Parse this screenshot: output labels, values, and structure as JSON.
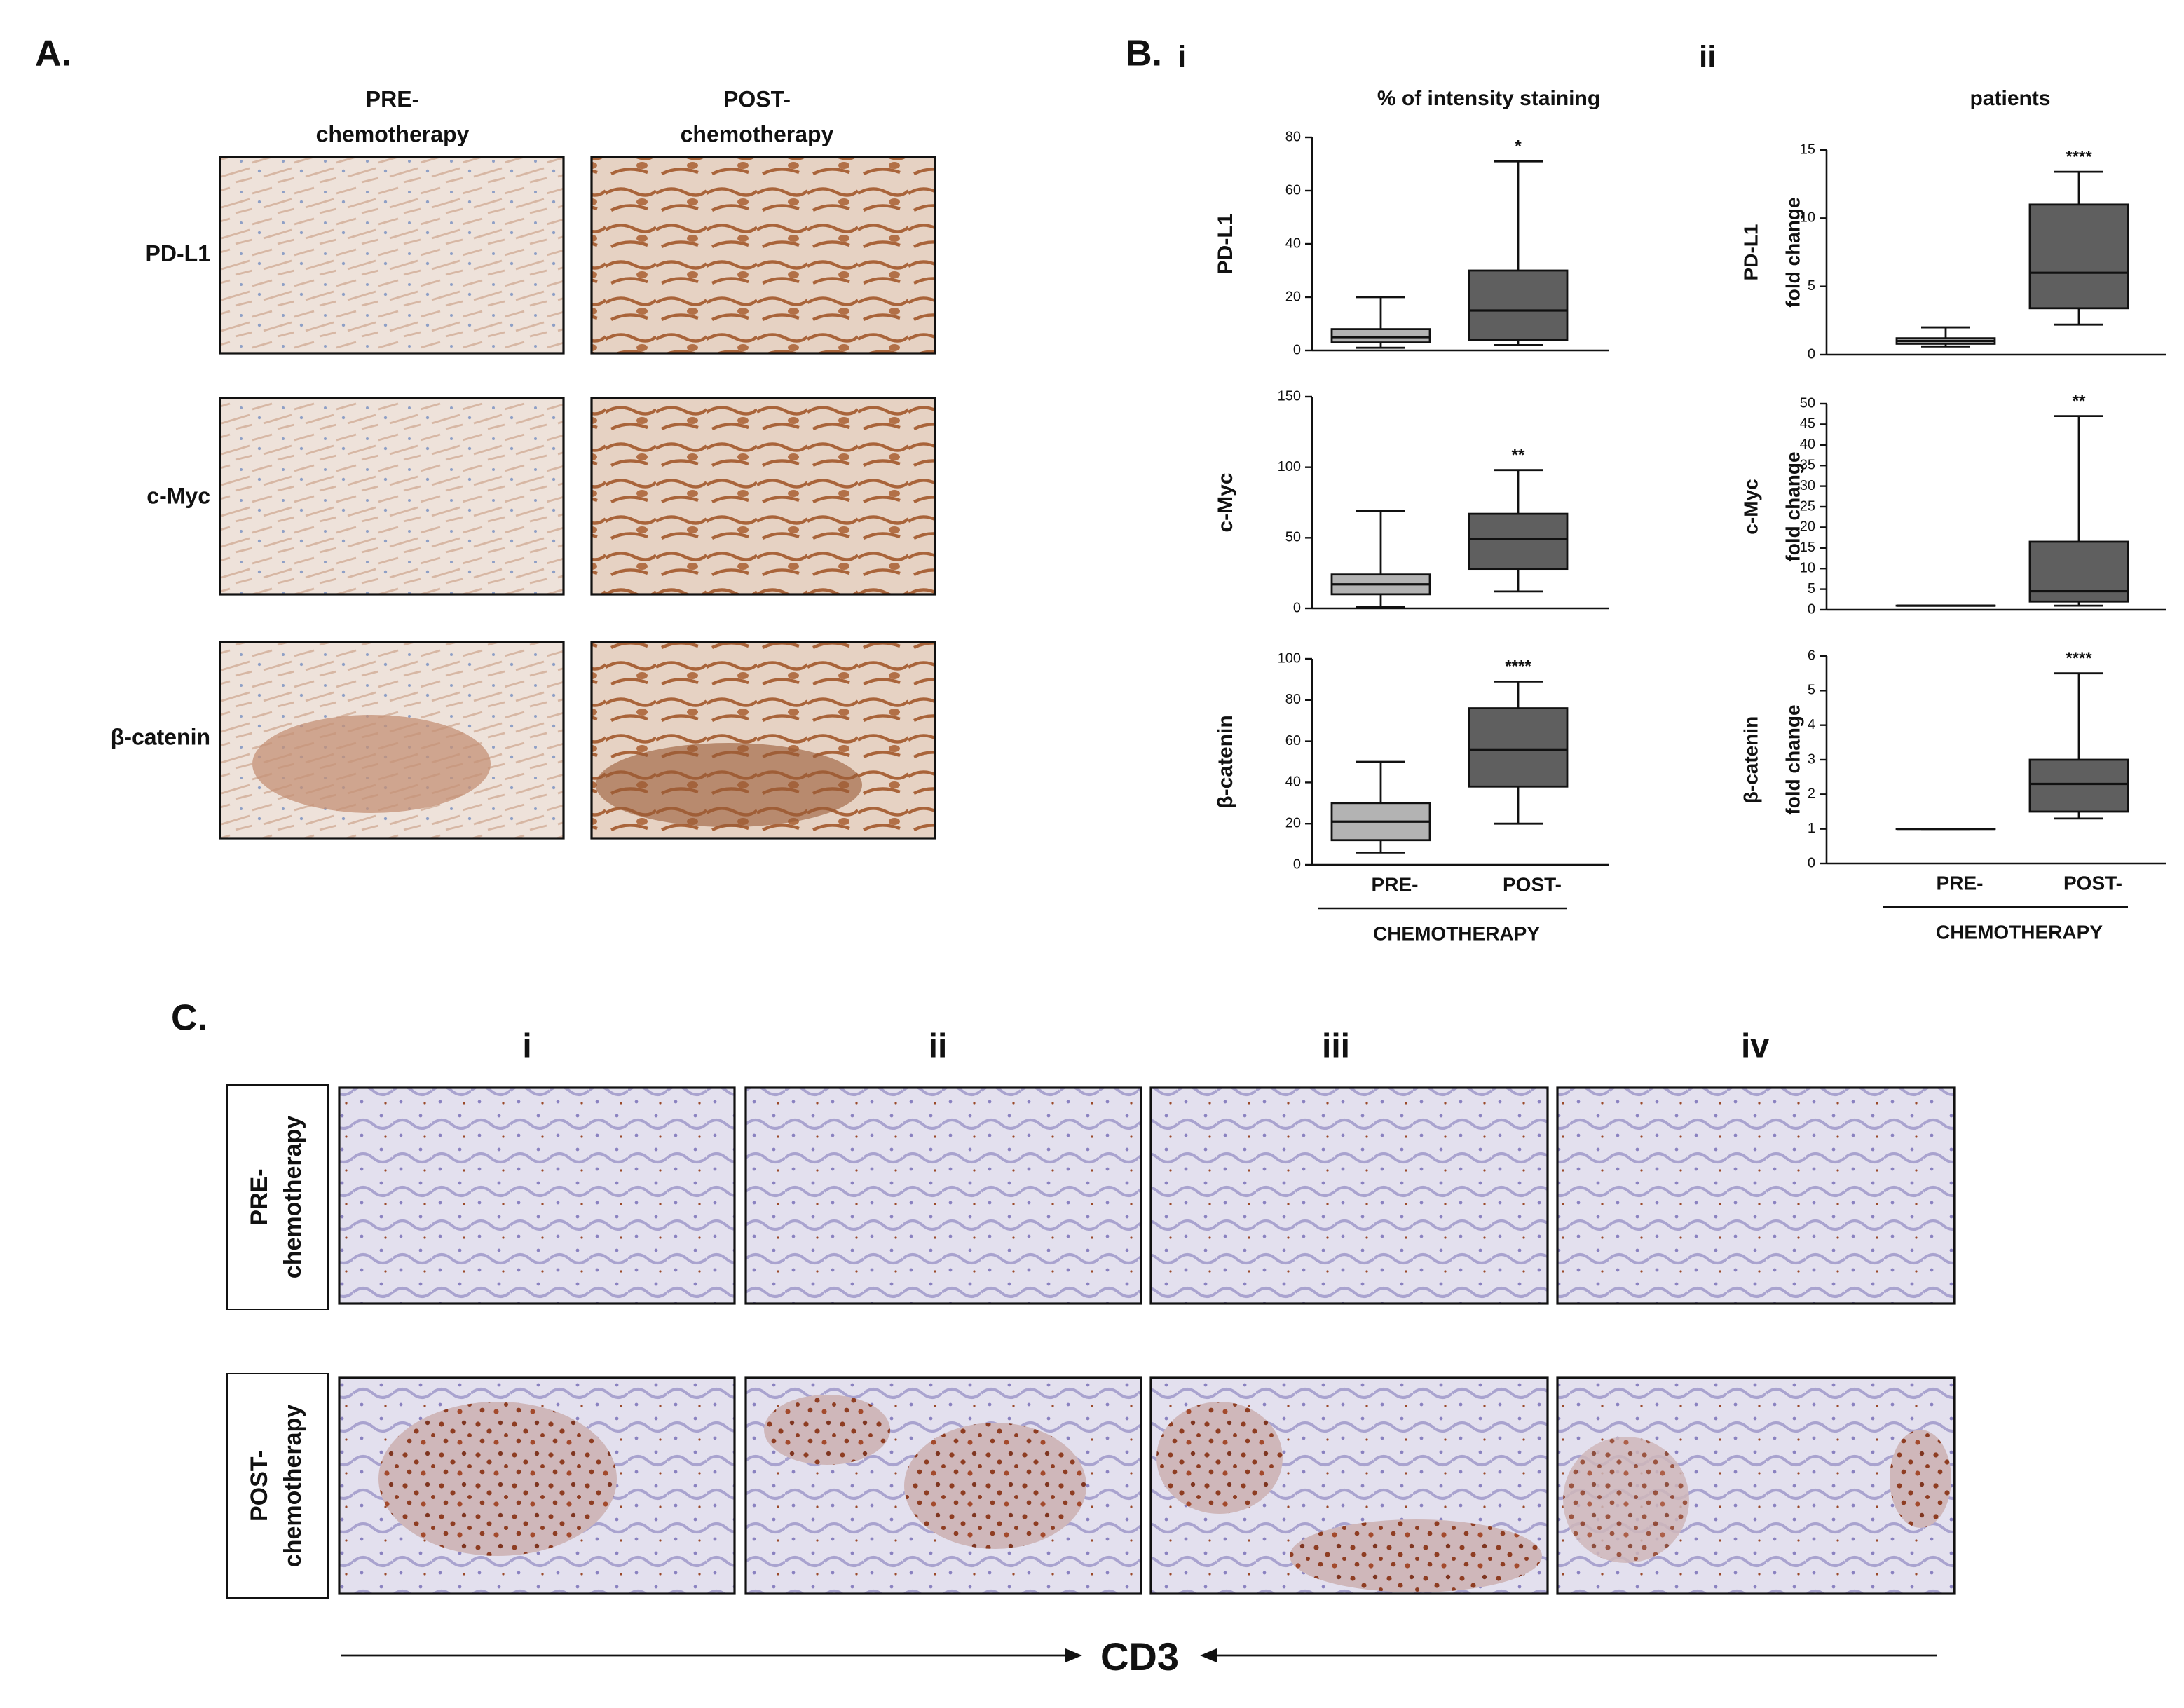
{
  "panel_a": {
    "label": "A.",
    "columns": [
      [
        "PRE-",
        "chemotherapy"
      ],
      [
        "POST-",
        "chemotherapy"
      ]
    ],
    "rows": [
      "PD-L1",
      "c-Myc",
      "β-catenin"
    ]
  },
  "panel_b": {
    "label": "B.",
    "sublabels": [
      "i",
      "ii"
    ]
  },
  "chart_data": [
    {
      "type": "box",
      "title": "% of intensity staining",
      "ylabel": [
        "PD-L1"
      ],
      "ylim": [
        0,
        80
      ],
      "yticks": [
        0,
        20,
        40,
        60,
        80
      ],
      "boxes": [
        {
          "min": 1,
          "q1": 3,
          "median": 5,
          "q3": 8,
          "max": 20,
          "color": "#b3b3b3"
        },
        {
          "min": 2,
          "q1": 4,
          "median": 15,
          "q3": 30,
          "max": 71,
          "color": "#5f5f5f",
          "annotation": "*"
        }
      ]
    },
    {
      "type": "box",
      "ylabel": [
        "c-Myc"
      ],
      "ylim": [
        0,
        150
      ],
      "yticks": [
        0,
        50,
        100,
        150
      ],
      "boxes": [
        {
          "min": 1,
          "q1": 10,
          "median": 17,
          "q3": 24,
          "max": 69,
          "color": "#b3b3b3"
        },
        {
          "min": 12,
          "q1": 28,
          "median": 49,
          "q3": 67,
          "max": 98,
          "color": "#5f5f5f",
          "annotation": "**"
        }
      ]
    },
    {
      "type": "box",
      "ylabel": [
        "β-catenin"
      ],
      "ylim": [
        0,
        100
      ],
      "yticks": [
        0,
        20,
        40,
        60,
        80,
        100
      ],
      "boxes": [
        {
          "min": 6,
          "q1": 12,
          "median": 21,
          "q3": 30,
          "max": 50,
          "color": "#b3b3b3"
        },
        {
          "min": 20,
          "q1": 38,
          "median": 56,
          "q3": 76,
          "max": 89,
          "color": "#5f5f5f",
          "annotation": "****"
        }
      ],
      "categories": [
        "PRE-",
        "POST-"
      ],
      "xlabel": "CHEMOTHERAPY"
    },
    {
      "type": "box",
      "title": "patients",
      "ylabel": [
        "PD-L1",
        "fold change"
      ],
      "ylim": [
        0,
        15
      ],
      "yticks": [
        0,
        5,
        10,
        15
      ],
      "boxes": [
        {
          "min": 0.6,
          "q1": 0.8,
          "median": 1,
          "q3": 1.2,
          "max": 2,
          "color": "#b3b3b3"
        },
        {
          "min": 2.2,
          "q1": 3.4,
          "median": 6,
          "q3": 11,
          "max": 13.4,
          "color": "#5f5f5f",
          "annotation": "****"
        }
      ]
    },
    {
      "type": "box",
      "ylabel": [
        "c-Myc",
        "fold change"
      ],
      "ylim": [
        0,
        50
      ],
      "yticks": [
        0,
        5,
        10,
        15,
        20,
        25,
        30,
        35,
        40,
        45,
        50
      ],
      "boxes": [
        {
          "min": 1,
          "q1": 1,
          "median": 1,
          "q3": 1,
          "max": 1,
          "color": "#b3b3b3"
        },
        {
          "min": 1,
          "q1": 2,
          "median": 4.5,
          "q3": 16.5,
          "max": 47,
          "color": "#5f5f5f",
          "annotation": "**"
        }
      ]
    },
    {
      "type": "box",
      "ylabel": [
        "β-catenin",
        "fold change"
      ],
      "ylim": [
        0,
        6
      ],
      "yticks": [
        0,
        1,
        2,
        3,
        4,
        5,
        6
      ],
      "boxes": [
        {
          "min": 1,
          "q1": 1,
          "median": 1,
          "q3": 1,
          "max": 1,
          "color": "#b3b3b3"
        },
        {
          "min": 1.3,
          "q1": 1.5,
          "median": 2.3,
          "q3": 3,
          "max": 5.5,
          "color": "#5f5f5f",
          "annotation": "****"
        }
      ],
      "categories": [
        "PRE-",
        "POST-"
      ],
      "xlabel": "CHEMOTHERAPY"
    }
  ],
  "panel_c": {
    "label": "C.",
    "columns": [
      "i",
      "ii",
      "iii",
      "iv"
    ],
    "rows": [
      [
        "PRE-",
        "chemotherapy"
      ],
      [
        "POST-",
        "chemotherapy"
      ]
    ],
    "marker": "CD3"
  }
}
